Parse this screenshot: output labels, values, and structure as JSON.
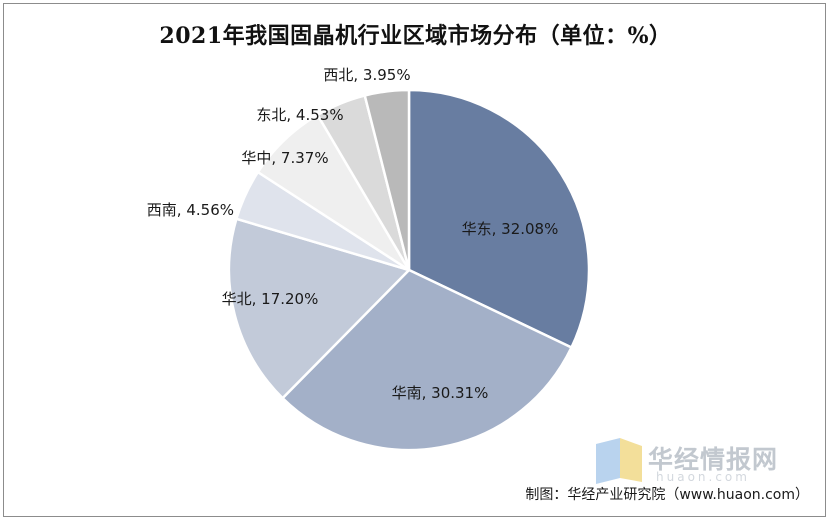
{
  "chart_data": {
    "type": "pie",
    "title": "2021年我国固晶机行业区域市场分布（单位：%）",
    "slices": [
      {
        "name": "华东",
        "value": 32.08,
        "label": "华东, 32.08%",
        "color": "#687da1"
      },
      {
        "name": "华南",
        "value": 30.31,
        "label": "华南, 30.31%",
        "color": "#a3b0c8"
      },
      {
        "name": "华北",
        "value": 17.2,
        "label": "华北, 17.20%",
        "color": "#c2cad9"
      },
      {
        "name": "西南",
        "value": 4.56,
        "label": "西南, 4.56%",
        "color": "#dfe3ec"
      },
      {
        "name": "华中",
        "value": 7.37,
        "label": "华中, 7.37%",
        "color": "#efefef"
      },
      {
        "name": "东北",
        "value": 4.53,
        "label": "东北, 4.53%",
        "color": "#dadada"
      },
      {
        "name": "西北",
        "value": 3.95,
        "label": "西北, 3.95%",
        "color": "#b9b9b9"
      }
    ],
    "legend": "none"
  },
  "watermark": {
    "text": "华经情报网",
    "sub": "huaon.com"
  },
  "source": "制图：华经产业研究院（www.huaon.com）"
}
